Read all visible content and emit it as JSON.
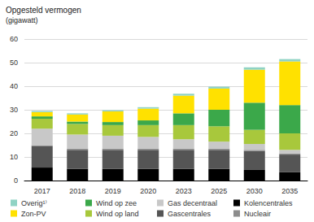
{
  "chart_data": {
    "type": "bar",
    "title": "Opgesteld vermogen",
    "subtitle": "(gigawatt)",
    "stacked": true,
    "grid": true,
    "legend": "bottom",
    "data_labels": false,
    "categories": [
      "2017",
      "2018",
      "2019",
      "2020",
      "2023",
      "2025",
      "2030",
      "2035"
    ],
    "ylim": [
      0,
      60
    ],
    "yticks": [
      0,
      10,
      20,
      30,
      40,
      50,
      60
    ],
    "series": [
      {
        "name": "Kolencentrales",
        "color": "#000000",
        "values": [
          5.5,
          5,
          5,
          5,
          5,
          5,
          4.5,
          3.5
        ]
      },
      {
        "name": "Gascentrales",
        "color": "#555555",
        "values": [
          9,
          8,
          8,
          8,
          8,
          8,
          8,
          7.5
        ]
      },
      {
        "name": "Nucleair",
        "color": "#8c8c8c",
        "values": [
          0.5,
          0.5,
          0.5,
          0.5,
          0.5,
          0.5,
          0.5,
          0.5
        ]
      },
      {
        "name": "Gas decentraal",
        "color": "#c8c8c8",
        "values": [
          7,
          6,
          5.5,
          5,
          4,
          3,
          2.5,
          1.5
        ]
      },
      {
        "name": "Wind op land",
        "color": "#a8c83c",
        "values": [
          4.2,
          4.5,
          4.5,
          5,
          6,
          6.5,
          6,
          7
        ]
      },
      {
        "name": "Wind op zee",
        "color": "#3ba84a",
        "values": [
          1,
          1,
          1.3,
          2,
          5,
          7,
          11.5,
          12
        ]
      },
      {
        "name": "Zon-PV",
        "color": "#ffe100",
        "values": [
          1.8,
          3,
          4.5,
          5,
          7.5,
          9,
          14,
          18.5
        ]
      },
      {
        "name": "Overig¹⁾",
        "color": "#8fd3c4",
        "values": [
          0.5,
          0.5,
          0.5,
          0.6,
          0.8,
          0.8,
          1,
          1
        ]
      }
    ]
  }
}
